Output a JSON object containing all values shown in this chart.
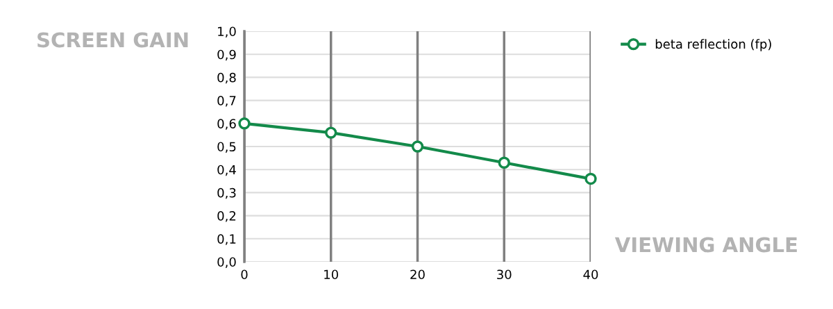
{
  "chart_data": {
    "type": "line",
    "xlabel": "VIEWING ANGLE",
    "ylabel": "SCREEN GAIN",
    "x": [
      0,
      10,
      20,
      30,
      40
    ],
    "series": [
      {
        "name": "beta reflection (fp)",
        "color": "#138a4a",
        "values": [
          0.6,
          0.56,
          0.5,
          0.43,
          0.36
        ]
      }
    ],
    "xlim": [
      0,
      40
    ],
    "xticks": [
      0,
      10,
      20,
      30,
      40
    ],
    "ylim": [
      0,
      1
    ],
    "yticks": [
      {
        "value": 0,
        "label": "0,0"
      },
      {
        "value": 0.1,
        "label": "0,1"
      },
      {
        "value": 0.2,
        "label": "0,2"
      },
      {
        "value": 0.3,
        "label": "0,3"
      },
      {
        "value": 0.4,
        "label": "0,4"
      },
      {
        "value": 0.5,
        "label": "0,5"
      },
      {
        "value": 0.6,
        "label": "0,6"
      },
      {
        "value": 0.7,
        "label": "0,7"
      },
      {
        "value": 0.8,
        "label": "0,8"
      },
      {
        "value": 0.9,
        "label": "0,9"
      },
      {
        "value": 1.0,
        "label": "1,0"
      }
    ],
    "grid": true,
    "legend": "top right",
    "marker": "circle",
    "line_style": "solid"
  }
}
